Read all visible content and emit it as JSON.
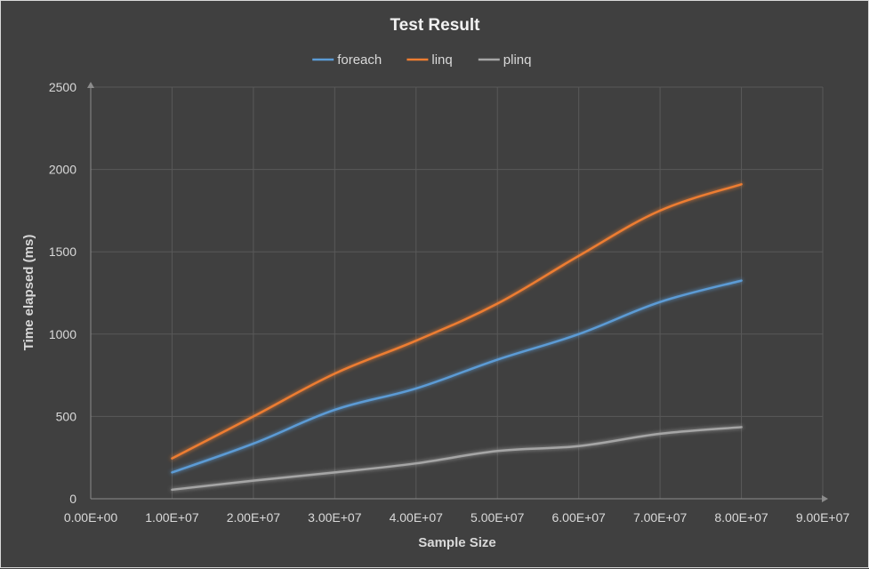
{
  "chart_data": {
    "type": "line",
    "title": "Test Result",
    "xlabel": "Sample Size",
    "ylabel": "Time elapsed (ms)",
    "xlim": [
      0,
      90000000
    ],
    "ylim": [
      0,
      2500
    ],
    "x_ticks": [
      0,
      10000000,
      20000000,
      30000000,
      40000000,
      50000000,
      60000000,
      70000000,
      80000000,
      90000000
    ],
    "x_tick_labels": [
      "0.00E+00",
      "1.00E+07",
      "2.00E+07",
      "3.00E+07",
      "4.00E+07",
      "5.00E+07",
      "6.00E+07",
      "7.00E+07",
      "8.00E+07",
      "9.00E+07"
    ],
    "y_ticks": [
      0,
      500,
      1000,
      1500,
      2000,
      2500
    ],
    "y_tick_labels": [
      "0",
      "500",
      "1000",
      "1500",
      "2000",
      "2500"
    ],
    "grid": true,
    "legend_position": "top",
    "x": [
      10000000,
      20000000,
      30000000,
      40000000,
      50000000,
      60000000,
      70000000,
      80000000
    ],
    "series": [
      {
        "name": "foreach",
        "color": "#5b9bd5",
        "values": [
          160,
          335,
          540,
          670,
          845,
          1000,
          1195,
          1325
        ]
      },
      {
        "name": "linq",
        "color": "#ed7d31",
        "values": [
          245,
          500,
          760,
          960,
          1185,
          1475,
          1750,
          1910
        ]
      },
      {
        "name": "plinq",
        "color": "#a5a5a5",
        "values": [
          55,
          110,
          160,
          215,
          290,
          320,
          395,
          435
        ]
      }
    ]
  }
}
